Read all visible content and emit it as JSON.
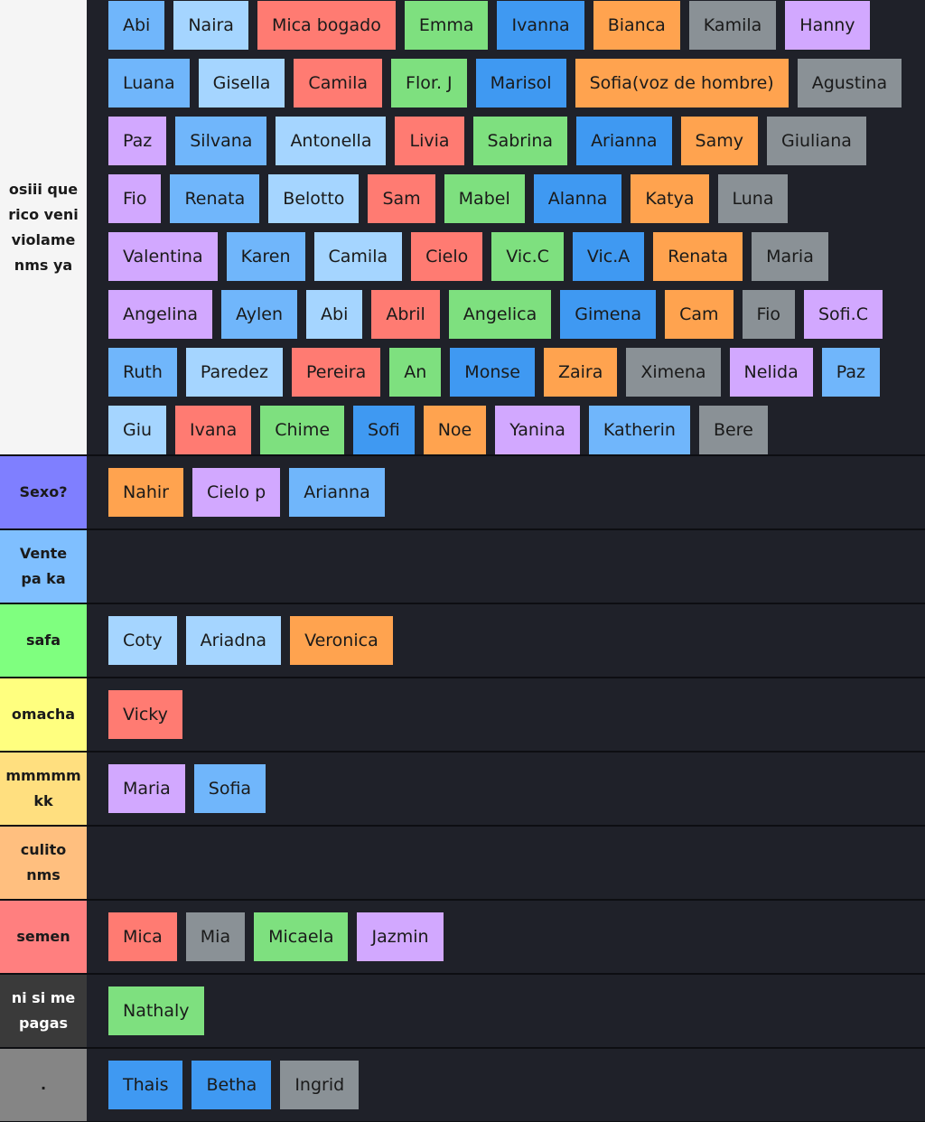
{
  "tiers": [
    {
      "label": "osiii que rico veni violame nms ya",
      "color": "#f5f5f5",
      "label_color": "#1a1a1a",
      "items": [
        {
          "text": "Abi",
          "color": "#70b6fb"
        },
        {
          "text": "Naira",
          "color": "#a5d5ff"
        },
        {
          "text": "Mica bogado",
          "color": "#ff7b72"
        },
        {
          "text": "Emma",
          "color": "#7ee07f"
        },
        {
          "text": "Ivanna",
          "color": "#3f99f2"
        },
        {
          "text": "Bianca",
          "color": "#ffa34f"
        },
        {
          "text": "Kamila",
          "color": "#8a9196"
        },
        {
          "text": "Hanny",
          "color": "#d2a8ff"
        },
        {
          "text": "Luana",
          "color": "#70b6fb"
        },
        {
          "text": "Gisella",
          "color": "#a5d5ff"
        },
        {
          "text": "Camila",
          "color": "#ff7b72"
        },
        {
          "text": "Flor. J",
          "color": "#7ee07f"
        },
        {
          "text": "Marisol",
          "color": "#3f99f2"
        },
        {
          "text": "Sofia(voz de hombre)",
          "color": "#ffa34f"
        },
        {
          "text": "Agustina",
          "color": "#8a9196"
        },
        {
          "text": "Paz",
          "color": "#d2a8ff"
        },
        {
          "text": "Silvana",
          "color": "#70b6fb"
        },
        {
          "text": "Antonella",
          "color": "#a5d5ff"
        },
        {
          "text": "Livia",
          "color": "#ff7b72"
        },
        {
          "text": "Sabrina",
          "color": "#7ee07f"
        },
        {
          "text": "Arianna",
          "color": "#3f99f2"
        },
        {
          "text": "Samy",
          "color": "#ffa34f"
        },
        {
          "text": "Giuliana",
          "color": "#8a9196"
        },
        {
          "text": "Fio",
          "color": "#d2a8ff"
        },
        {
          "text": "Renata",
          "color": "#70b6fb"
        },
        {
          "text": "Belotto",
          "color": "#a5d5ff"
        },
        {
          "text": "Sam",
          "color": "#ff7b72"
        },
        {
          "text": "Mabel",
          "color": "#7ee07f"
        },
        {
          "text": "Alanna",
          "color": "#3f99f2"
        },
        {
          "text": "Katya",
          "color": "#ffa34f"
        },
        {
          "text": "Luna",
          "color": "#8a9196"
        },
        {
          "text": "Valentina",
          "color": "#d2a8ff"
        },
        {
          "text": "Karen",
          "color": "#70b6fb"
        },
        {
          "text": "Camila",
          "color": "#a5d5ff"
        },
        {
          "text": "Cielo",
          "color": "#ff7b72"
        },
        {
          "text": "Vic.C",
          "color": "#7ee07f"
        },
        {
          "text": "Vic.A",
          "color": "#3f99f2"
        },
        {
          "text": "Renata",
          "color": "#ffa34f"
        },
        {
          "text": "Maria",
          "color": "#8a9196"
        },
        {
          "text": "Angelina",
          "color": "#d2a8ff"
        },
        {
          "text": "Aylen",
          "color": "#70b6fb"
        },
        {
          "text": "Abi",
          "color": "#a5d5ff"
        },
        {
          "text": "Abril",
          "color": "#ff7b72"
        },
        {
          "text": "Angelica",
          "color": "#7ee07f"
        },
        {
          "text": "Gimena",
          "color": "#3f99f2"
        },
        {
          "text": "Cam",
          "color": "#ffa34f"
        },
        {
          "text": "Fio",
          "color": "#8a9196"
        },
        {
          "text": "Sofi.C",
          "color": "#d2a8ff"
        },
        {
          "text": "Ruth",
          "color": "#70b6fb"
        },
        {
          "text": "Paredez",
          "color": "#a5d5ff"
        },
        {
          "text": "Pereira",
          "color": "#ff7b72"
        },
        {
          "text": "An",
          "color": "#7ee07f"
        },
        {
          "text": "Monse",
          "color": "#3f99f2"
        },
        {
          "text": "Zaira",
          "color": "#ffa34f"
        },
        {
          "text": "Ximena",
          "color": "#8a9196"
        },
        {
          "text": "Nelida",
          "color": "#d2a8ff"
        },
        {
          "text": "Paz",
          "color": "#70b6fb"
        },
        {
          "text": "Giu",
          "color": "#a5d5ff"
        },
        {
          "text": "Ivana",
          "color": "#ff7b72"
        },
        {
          "text": "Chime",
          "color": "#7ee07f"
        },
        {
          "text": "Sofi",
          "color": "#3f99f2"
        },
        {
          "text": "Noe",
          "color": "#ffa34f"
        },
        {
          "text": "Yanina",
          "color": "#d2a8ff"
        },
        {
          "text": "Katherin",
          "color": "#70b6fb"
        },
        {
          "text": "Bere",
          "color": "#8a9196"
        }
      ]
    },
    {
      "label": "Sexo?",
      "color": "#7f7fff",
      "label_color": "#1a1a1a",
      "items": [
        {
          "text": "Nahir",
          "color": "#ffa34f"
        },
        {
          "text": "Cielo p",
          "color": "#d2a8ff"
        },
        {
          "text": "Arianna",
          "color": "#70b6fb"
        }
      ]
    },
    {
      "label": "Vente pa ka",
      "color": "#7fbfff",
      "label_color": "#1a1a1a",
      "items": []
    },
    {
      "label": "safa",
      "color": "#7fff7f",
      "label_color": "#1a1a1a",
      "items": [
        {
          "text": "Coty",
          "color": "#a5d5ff"
        },
        {
          "text": "Ariadna",
          "color": "#a5d5ff"
        },
        {
          "text": "Veronica",
          "color": "#ffa34f"
        }
      ]
    },
    {
      "label": "omacha",
      "color": "#ffff7f",
      "label_color": "#1a1a1a",
      "items": [
        {
          "text": "Vicky",
          "color": "#ff7b72"
        }
      ]
    },
    {
      "label": "mmmmm kk",
      "color": "#ffdf7f",
      "label_color": "#1a1a1a",
      "items": [
        {
          "text": "Maria",
          "color": "#d2a8ff"
        },
        {
          "text": "Sofia",
          "color": "#70b6fb"
        }
      ]
    },
    {
      "label": "culito nms",
      "color": "#ffbf7f",
      "label_color": "#1a1a1a",
      "items": []
    },
    {
      "label": "semen",
      "color": "#ff7f7f",
      "label_color": "#1a1a1a",
      "items": [
        {
          "text": "Mica",
          "color": "#ff7b72"
        },
        {
          "text": "Mia",
          "color": "#8a9196"
        },
        {
          "text": "Micaela",
          "color": "#7ee07f"
        },
        {
          "text": "Jazmin",
          "color": "#d2a8ff"
        }
      ]
    },
    {
      "label": "ni si me pagas",
      "color": "#3a3a3a",
      "label_color": "#ffffff",
      "items": [
        {
          "text": "Nathaly",
          "color": "#7ee07f"
        }
      ]
    },
    {
      "label": ".",
      "color": "#858585",
      "label_color": "#1a1a1a",
      "items": [
        {
          "text": "Thais",
          "color": "#3f99f2"
        },
        {
          "text": "Betha",
          "color": "#3f99f2"
        },
        {
          "text": "Ingrid",
          "color": "#8a9196"
        }
      ]
    }
  ]
}
